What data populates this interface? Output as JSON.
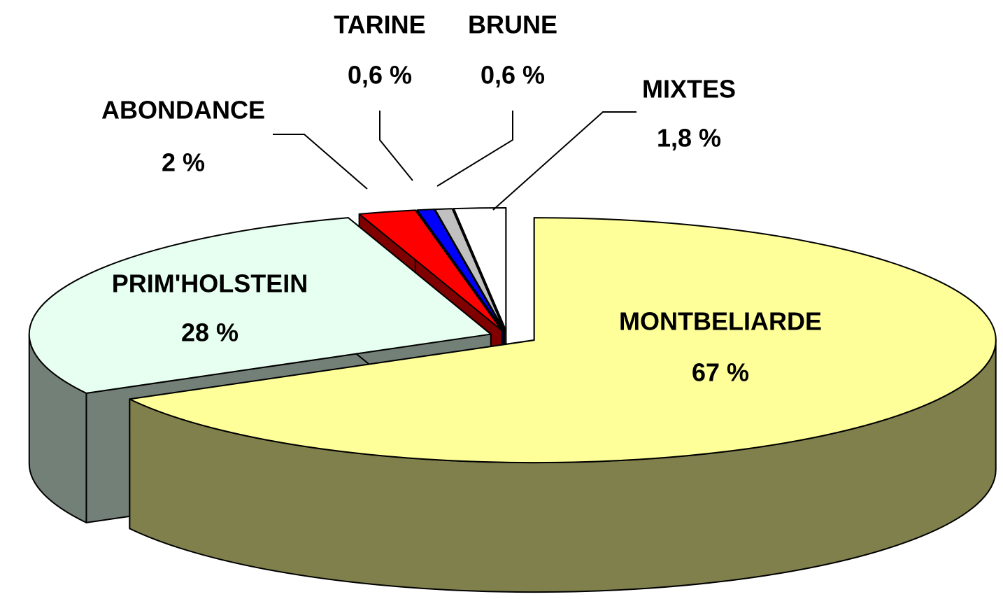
{
  "chart_data": {
    "type": "pie",
    "categories": [
      "MONTBELIARDE",
      "PRIM'HOLSTEIN",
      "ABONDANCE",
      "TARINE",
      "BRUNE",
      "MIXTES"
    ],
    "values": [
      67,
      28,
      2,
      0.6,
      0.6,
      1.8
    ],
    "value_labels": [
      "67 %",
      "28 %",
      "2 %",
      "0,6 %",
      "0,6 %",
      "1,8 %"
    ],
    "colors": [
      "#ffff99",
      "#e6fff0",
      "#ff0000",
      "#0000ff",
      "#c0c0c0",
      "#ffffff"
    ]
  }
}
